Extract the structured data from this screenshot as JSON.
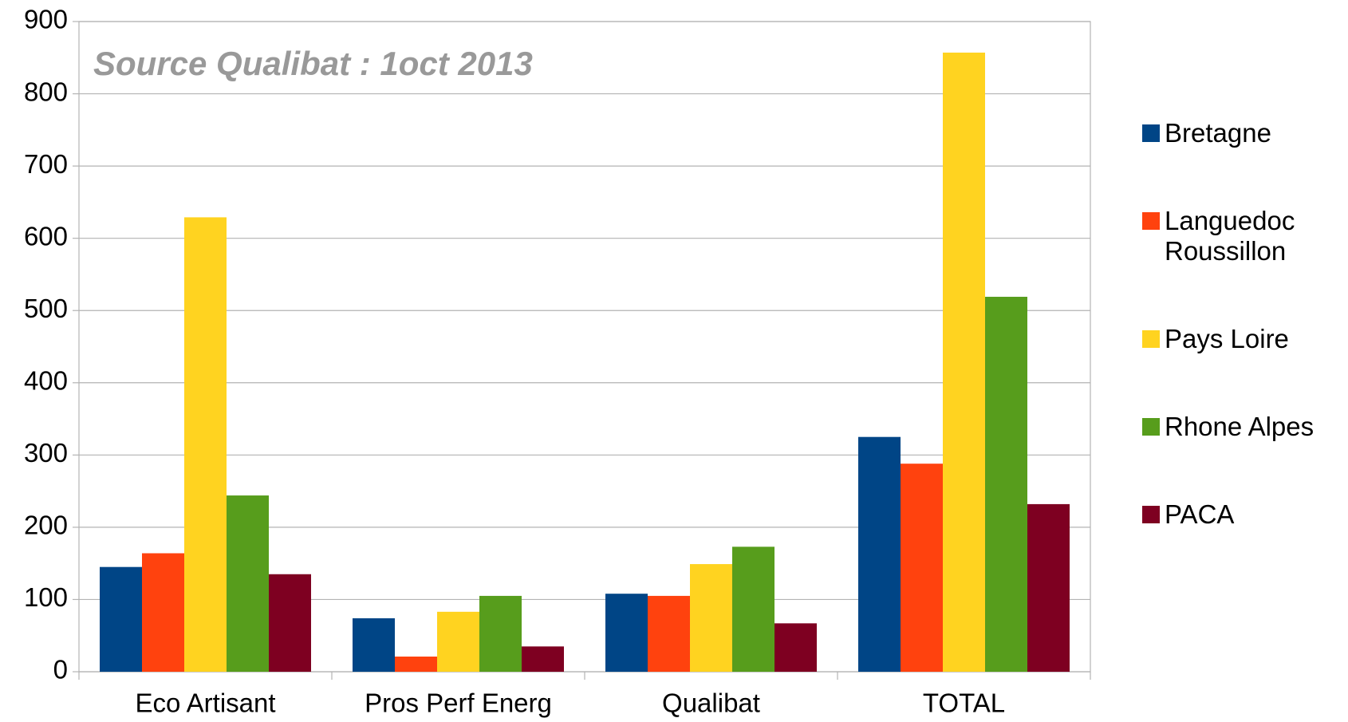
{
  "chart_data": {
    "type": "bar",
    "annotation": "Source Qualibat : 1oct 2013",
    "categories": [
      "Eco Artisant",
      "Pros Perf Energ",
      "Qualibat",
      "TOTAL"
    ],
    "series": [
      {
        "name": "Bretagne",
        "color": "#004586",
        "values": [
          145,
          74,
          108,
          325
        ]
      },
      {
        "name": "Languedoc Roussillon",
        "color": "#ff420e",
        "values": [
          164,
          21,
          105,
          288
        ]
      },
      {
        "name": "Pays Loire",
        "color": "#ffd320",
        "values": [
          629,
          83,
          149,
          857
        ]
      },
      {
        "name": "Rhone Alpes",
        "color": "#579d1c",
        "values": [
          244,
          105,
          173,
          519
        ]
      },
      {
        "name": "PACA",
        "color": "#7e0021",
        "values": [
          135,
          35,
          67,
          232
        ]
      }
    ],
    "ylim": [
      0,
      900
    ],
    "yticks": [
      0,
      100,
      200,
      300,
      400,
      500,
      600,
      700,
      800,
      900
    ],
    "grid": true,
    "legend": "right"
  }
}
